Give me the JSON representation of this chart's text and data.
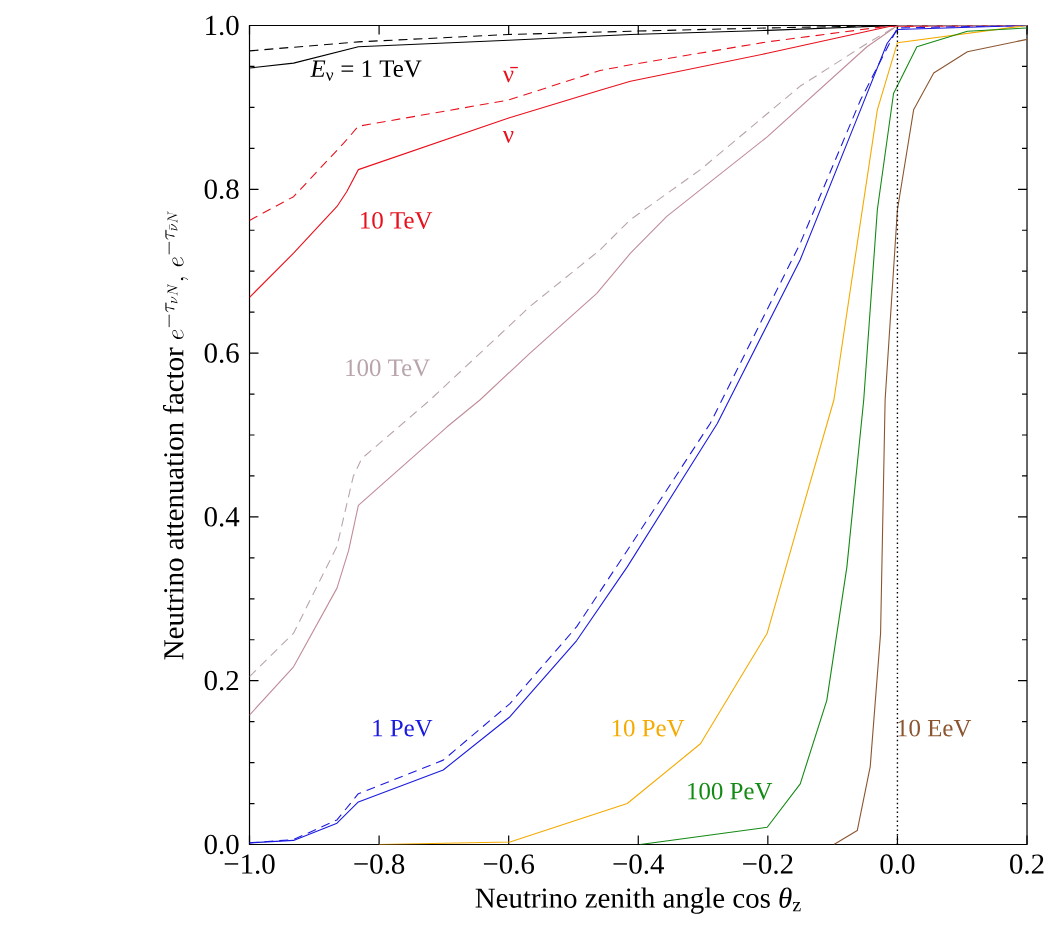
{
  "chart_data": {
    "type": "line",
    "xlabel": "Neutrino zenith angle cos *θ*$_{z}$",
    "ylabel": "\\text{Neutrino attenuation factor } e^{-\\tau_{\\nu N}},\\, e^{-\\tau_{\\bar{\\nu} N}}",
    "xlim": [
      -1.0,
      0.2
    ],
    "ylim": [
      0.0,
      1.0
    ],
    "xticks": [
      {
        "value": -1.0,
        "label": "−1.0"
      },
      {
        "value": -0.8,
        "label": "−0.8"
      },
      {
        "value": -0.6,
        "label": "−0.6"
      },
      {
        "value": -0.4,
        "label": "−0.4"
      },
      {
        "value": -0.2,
        "label": "−0.2"
      },
      {
        "value": 0.0,
        "label": "0.0"
      },
      {
        "value": 0.2,
        "label": "0.2"
      }
    ],
    "yticks": [
      {
        "value": 0.0,
        "label": "0.0"
      },
      {
        "value": 0.2,
        "label": "0.2"
      },
      {
        "value": 0.4,
        "label": "0.4"
      },
      {
        "value": 0.6,
        "label": "0.6"
      },
      {
        "value": 0.8,
        "label": "0.8"
      },
      {
        "value": 1.0,
        "label": "1.0"
      }
    ],
    "series": [
      {
        "color": "#000000",
        "line_style": "solid",
        "x": [
          -1.0,
          -0.932,
          -0.832,
          -0.6,
          -0.412,
          -0.2,
          0.0,
          0.2
        ],
        "values": [
          0.948,
          0.954,
          0.974,
          0.982,
          0.989,
          0.994,
          1.0,
          1.0
        ]
      },
      {
        "color": "#000000",
        "line_style": "dashed",
        "x": [
          -1.0,
          -0.832,
          -0.6,
          -0.412,
          -0.2,
          0.0,
          0.2
        ],
        "values": [
          0.969,
          0.98,
          0.989,
          0.993,
          0.997,
          1.0,
          1.0
        ]
      },
      {
        "color": "#e8101c",
        "line_style": "solid",
        "x": [
          -1.0,
          -0.932,
          -0.865,
          -0.85,
          -0.832,
          -0.6,
          -0.459,
          -0.412,
          -0.201,
          -0.011,
          0.2
        ],
        "values": [
          0.668,
          0.722,
          0.779,
          0.797,
          0.824,
          0.887,
          0.921,
          0.932,
          0.966,
          0.999,
          1.0
        ]
      },
      {
        "color": "#e8101c",
        "line_style": "dashed",
        "x": [
          -1.0,
          -0.932,
          -0.855,
          -0.832,
          -0.6,
          -0.459,
          -0.412,
          -0.201,
          -0.016,
          0.2
        ],
        "values": [
          0.762,
          0.791,
          0.856,
          0.877,
          0.909,
          0.945,
          0.952,
          0.98,
          0.999,
          1.0
        ]
      },
      {
        "color": "#c08c98",
        "line_style": "solid",
        "x": [
          -1.0,
          -0.932,
          -0.865,
          -0.847,
          -0.832,
          -0.695,
          -0.644,
          -0.567,
          -0.464,
          -0.412,
          -0.356,
          -0.201,
          -0.047,
          0.0,
          0.2
        ],
        "values": [
          0.158,
          0.217,
          0.313,
          0.359,
          0.414,
          0.51,
          0.543,
          0.6,
          0.673,
          0.722,
          0.767,
          0.864,
          0.974,
          1.0,
          1.0
        ]
      },
      {
        "color": "#b8a4ac",
        "line_style": "dashed",
        "x": [
          -1.0,
          -0.932,
          -0.865,
          -0.84,
          -0.827,
          -0.721,
          -0.567,
          -0.459,
          -0.412,
          -0.304,
          -0.15,
          -0.047,
          0.0,
          0.2
        ],
        "values": [
          0.205,
          0.258,
          0.364,
          0.449,
          0.471,
          0.543,
          0.657,
          0.726,
          0.763,
          0.824,
          0.926,
          0.978,
          1.0,
          1.0
        ]
      },
      {
        "color": "#1a1ae0",
        "line_style": "solid",
        "x": [
          -1.0,
          -0.932,
          -0.865,
          -0.832,
          -0.701,
          -0.598,
          -0.495,
          -0.417,
          -0.278,
          -0.15,
          -0.057,
          -0.016,
          0.0,
          0.2
        ],
        "values": [
          0.002,
          0.005,
          0.026,
          0.052,
          0.091,
          0.156,
          0.249,
          0.339,
          0.514,
          0.714,
          0.897,
          0.978,
          0.995,
          1.0
        ]
      },
      {
        "color": "#1a1ae0",
        "line_style": "dashed",
        "x": [
          -1.0,
          -0.932,
          -0.865,
          -0.832,
          -0.701,
          -0.598,
          -0.495,
          -0.417,
          -0.289,
          -0.15,
          -0.057,
          0.0,
          0.2
        ],
        "values": [
          0.002,
          0.006,
          0.03,
          0.062,
          0.103,
          0.172,
          0.266,
          0.359,
          0.514,
          0.734,
          0.909,
          0.997,
          1.0
        ]
      },
      {
        "color": "#f5aa00",
        "line_style": "solid",
        "x": [
          -0.8,
          -0.598,
          -0.417,
          -0.304,
          -0.201,
          -0.15,
          -0.098,
          -0.062,
          -0.031,
          0.0,
          0.2
        ],
        "values": [
          0.0,
          0.003,
          0.05,
          0.123,
          0.258,
          0.4,
          0.543,
          0.734,
          0.897,
          0.979,
          1.0
        ]
      },
      {
        "color": "#138a13",
        "line_style": "solid",
        "x": [
          -0.397,
          -0.201,
          -0.15,
          -0.109,
          -0.078,
          -0.052,
          -0.031,
          -0.006,
          0.03,
          0.108,
          0.2
        ],
        "values": [
          0.0,
          0.021,
          0.074,
          0.176,
          0.339,
          0.543,
          0.775,
          0.917,
          0.974,
          0.993,
          0.997
        ]
      },
      {
        "color": "#8b5530",
        "line_style": "solid",
        "x": [
          -0.098,
          -0.062,
          -0.042,
          -0.026,
          -0.019,
          0.0,
          0.025,
          0.056,
          0.108,
          0.2
        ],
        "values": [
          0.0,
          0.017,
          0.095,
          0.258,
          0.543,
          0.775,
          0.897,
          0.942,
          0.968,
          0.983
        ]
      }
    ],
    "ref_lines": [
      {
        "axis": "x",
        "value": 0.0,
        "color": "#000000",
        "line_style": "dotted"
      }
    ],
    "annotations": [
      "*E*$_{ν}$ = 1 TeV",
      "ν̄",
      "ν",
      "10 TeV",
      "100 TeV",
      "1 PeV",
      "10 PeV",
      "100 PeV",
      "10 EeV"
    ]
  }
}
